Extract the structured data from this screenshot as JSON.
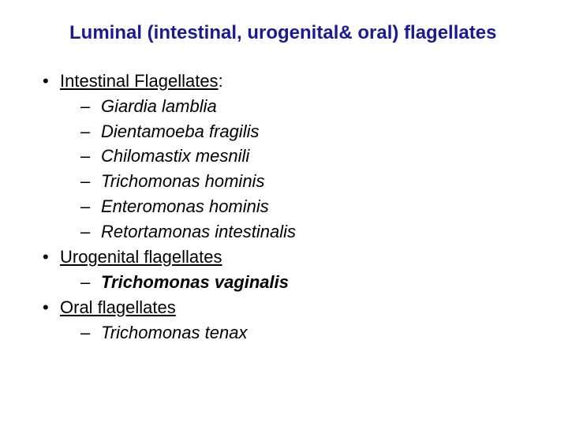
{
  "title": {
    "text": "Luminal (intestinal, urogenital& oral) flagellates",
    "color": "#1a1a99",
    "font_size": 24,
    "font_weight": "bold"
  },
  "body": {
    "font_size": 22,
    "text_color": "#000000",
    "bullet_level1": "•",
    "bullet_level2": "–",
    "sections": [
      {
        "heading": "Intestinal Flagellates",
        "heading_suffix": ":",
        "underline": true,
        "items": [
          {
            "text": "Giardia lamblia",
            "style": "italic"
          },
          {
            "text": "Dientamoeba fragilis",
            "style": "italic"
          },
          {
            "text": "Chilomastix mesnili",
            "style": "italic"
          },
          {
            "text": "Trichomonas hominis",
            "style": "italic"
          },
          {
            "text": "Enteromonas hominis",
            "style": "italic"
          },
          {
            "text": "Retortamonas intestinalis",
            "style": "italic"
          }
        ]
      },
      {
        "heading": "Urogenital flagellates",
        "heading_suffix": "",
        "underline": true,
        "items": [
          {
            "text": "Trichomonas vaginalis",
            "style": "bold-italic"
          }
        ]
      },
      {
        "heading": "Oral flagellates",
        "heading_suffix": "",
        "underline": true,
        "items": [
          {
            "text": "Trichomonas tenax",
            "style": "italic"
          }
        ]
      }
    ]
  },
  "background_color": "#ffffff",
  "slide_width": 720,
  "slide_height": 540
}
